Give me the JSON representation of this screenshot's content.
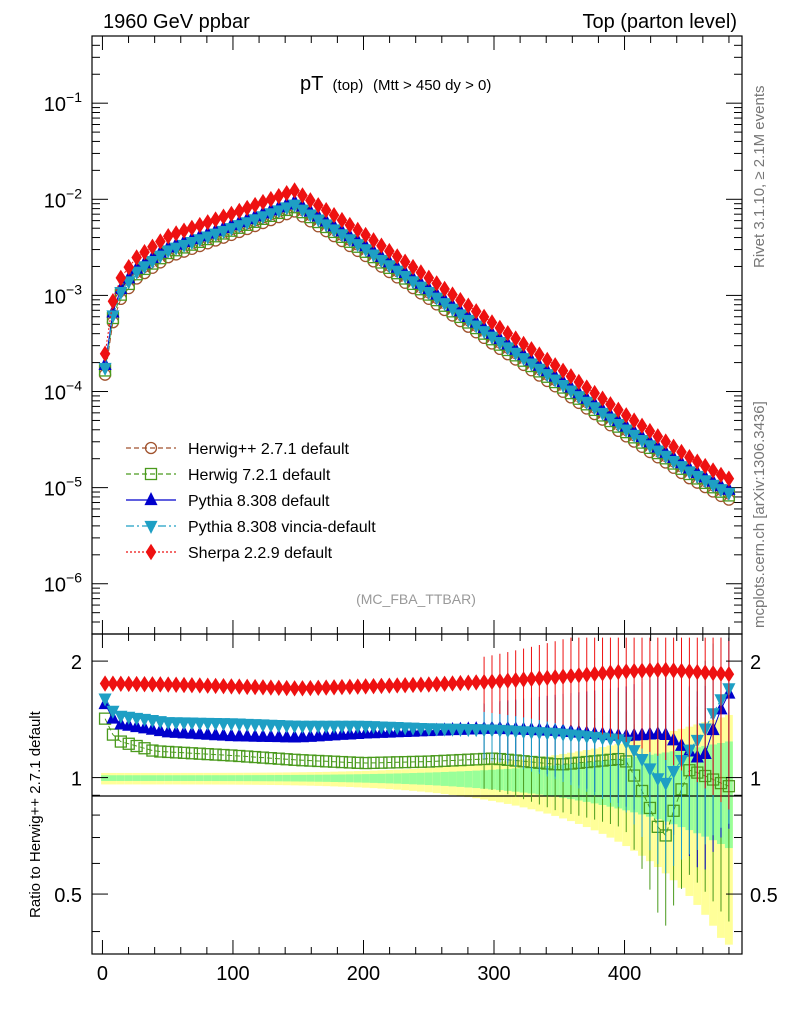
{
  "header": {
    "left": "1960 GeV ppbar",
    "right": "Top (parton level)"
  },
  "side_labels": {
    "rivet": "Rivet 3.1.10, ≥ 2.1M events",
    "mcplots": "mcplots.cern.ch [arXiv:1306.3436]"
  },
  "chart_data": {
    "type": "line",
    "title": "pT",
    "title_sub": "(top)",
    "title_cut": "(Mtt > 450 dy > 0)",
    "watermark": "(MC_FBA_TTBAR)",
    "xlim": [
      -8,
      490
    ],
    "x_ticks": [
      0,
      100,
      200,
      300,
      400
    ],
    "x_tick_labels": [
      "0",
      "100",
      "200",
      "300",
      "400"
    ],
    "ylim_log": [
      3e-07,
      0.5
    ],
    "y_ticks": [
      1e-06,
      1e-05,
      0.0001,
      0.001,
      0.01,
      0.1
    ],
    "y_tick_base": "10",
    "y_tick_exponents": [
      "−6",
      "−5",
      "−4",
      "−3",
      "−2",
      "−1"
    ],
    "ratio_ylabel": "Ratio to Herwig++ 2.7.1 default",
    "ratio_ylim": [
      0.35,
      2.35
    ],
    "ratio_ticks": [
      0.5,
      1,
      2
    ],
    "ratio_tick_labels": [
      "0.5",
      "1",
      "2"
    ],
    "legend_position": "center-left",
    "series": [
      {
        "name": "Herwig++ 2.7.1 default",
        "color": "#a0522d",
        "marker": "circle",
        "dash": "5,3",
        "peak": 0.0075,
        "ratio": [
          [
            2,
            1.0
          ],
          [
            479,
            1.0
          ]
        ]
      },
      {
        "name": "Herwig 7.2.1 default",
        "color": "#4a9a1d",
        "marker": "square",
        "dash": "5,3",
        "peak": 0.0083,
        "ratio": [
          [
            2,
            1.42
          ],
          [
            10,
            1.25
          ],
          [
            40,
            1.17
          ],
          [
            100,
            1.14
          ],
          [
            150,
            1.11
          ],
          [
            200,
            1.09
          ],
          [
            250,
            1.1
          ],
          [
            300,
            1.12
          ],
          [
            350,
            1.08
          ],
          [
            400,
            1.12
          ],
          [
            430,
            0.68
          ],
          [
            450,
            1.05
          ],
          [
            479,
            0.95
          ]
        ]
      },
      {
        "name": "Pythia 8.308 default",
        "color": "#0000cc",
        "marker": "triangle-up",
        "dash": "",
        "peak": 0.0095,
        "ratio": [
          [
            2,
            1.55
          ],
          [
            10,
            1.38
          ],
          [
            50,
            1.31
          ],
          [
            100,
            1.28
          ],
          [
            150,
            1.27
          ],
          [
            200,
            1.3
          ],
          [
            250,
            1.32
          ],
          [
            300,
            1.34
          ],
          [
            350,
            1.32
          ],
          [
            400,
            1.28
          ],
          [
            430,
            1.3
          ],
          [
            460,
            1.1
          ],
          [
            479,
            1.65
          ]
        ]
      },
      {
        "name": "Pythia 8.308 vincia-default",
        "color": "#1e9fc4",
        "marker": "triangle-down",
        "dash": "8,3,2,3",
        "peak": 0.0088,
        "ratio": [
          [
            2,
            1.6
          ],
          [
            10,
            1.45
          ],
          [
            50,
            1.39
          ],
          [
            100,
            1.38
          ],
          [
            150,
            1.36
          ],
          [
            200,
            1.36
          ],
          [
            250,
            1.34
          ],
          [
            300,
            1.33
          ],
          [
            350,
            1.3
          ],
          [
            400,
            1.25
          ],
          [
            430,
            0.95
          ],
          [
            460,
            1.3
          ],
          [
            479,
            1.7
          ]
        ]
      },
      {
        "name": "Sherpa 2.2.9 default",
        "color": "#ee1111",
        "marker": "diamond",
        "dash": "2,2",
        "peak": 0.0124,
        "ratio": [
          [
            2,
            1.75
          ],
          [
            50,
            1.74
          ],
          [
            100,
            1.72
          ],
          [
            150,
            1.7
          ],
          [
            200,
            1.72
          ],
          [
            250,
            1.74
          ],
          [
            300,
            1.77
          ],
          [
            350,
            1.82
          ],
          [
            400,
            1.88
          ],
          [
            430,
            1.9
          ],
          [
            479,
            1.85
          ]
        ]
      }
    ],
    "shape_log10": [
      [
        2,
        -3.82
      ],
      [
        6,
        -3.38
      ],
      [
        12,
        -3.07
      ],
      [
        25,
        -2.83
      ],
      [
        50,
        -2.6
      ],
      [
        100,
        -2.36
      ],
      [
        147,
        -2.12
      ],
      [
        200,
        -2.57
      ],
      [
        250,
        -3.03
      ],
      [
        300,
        -3.51
      ],
      [
        350,
        -3.97
      ],
      [
        400,
        -4.45
      ],
      [
        450,
        -4.9
      ],
      [
        479,
        -5.12
      ]
    ]
  }
}
